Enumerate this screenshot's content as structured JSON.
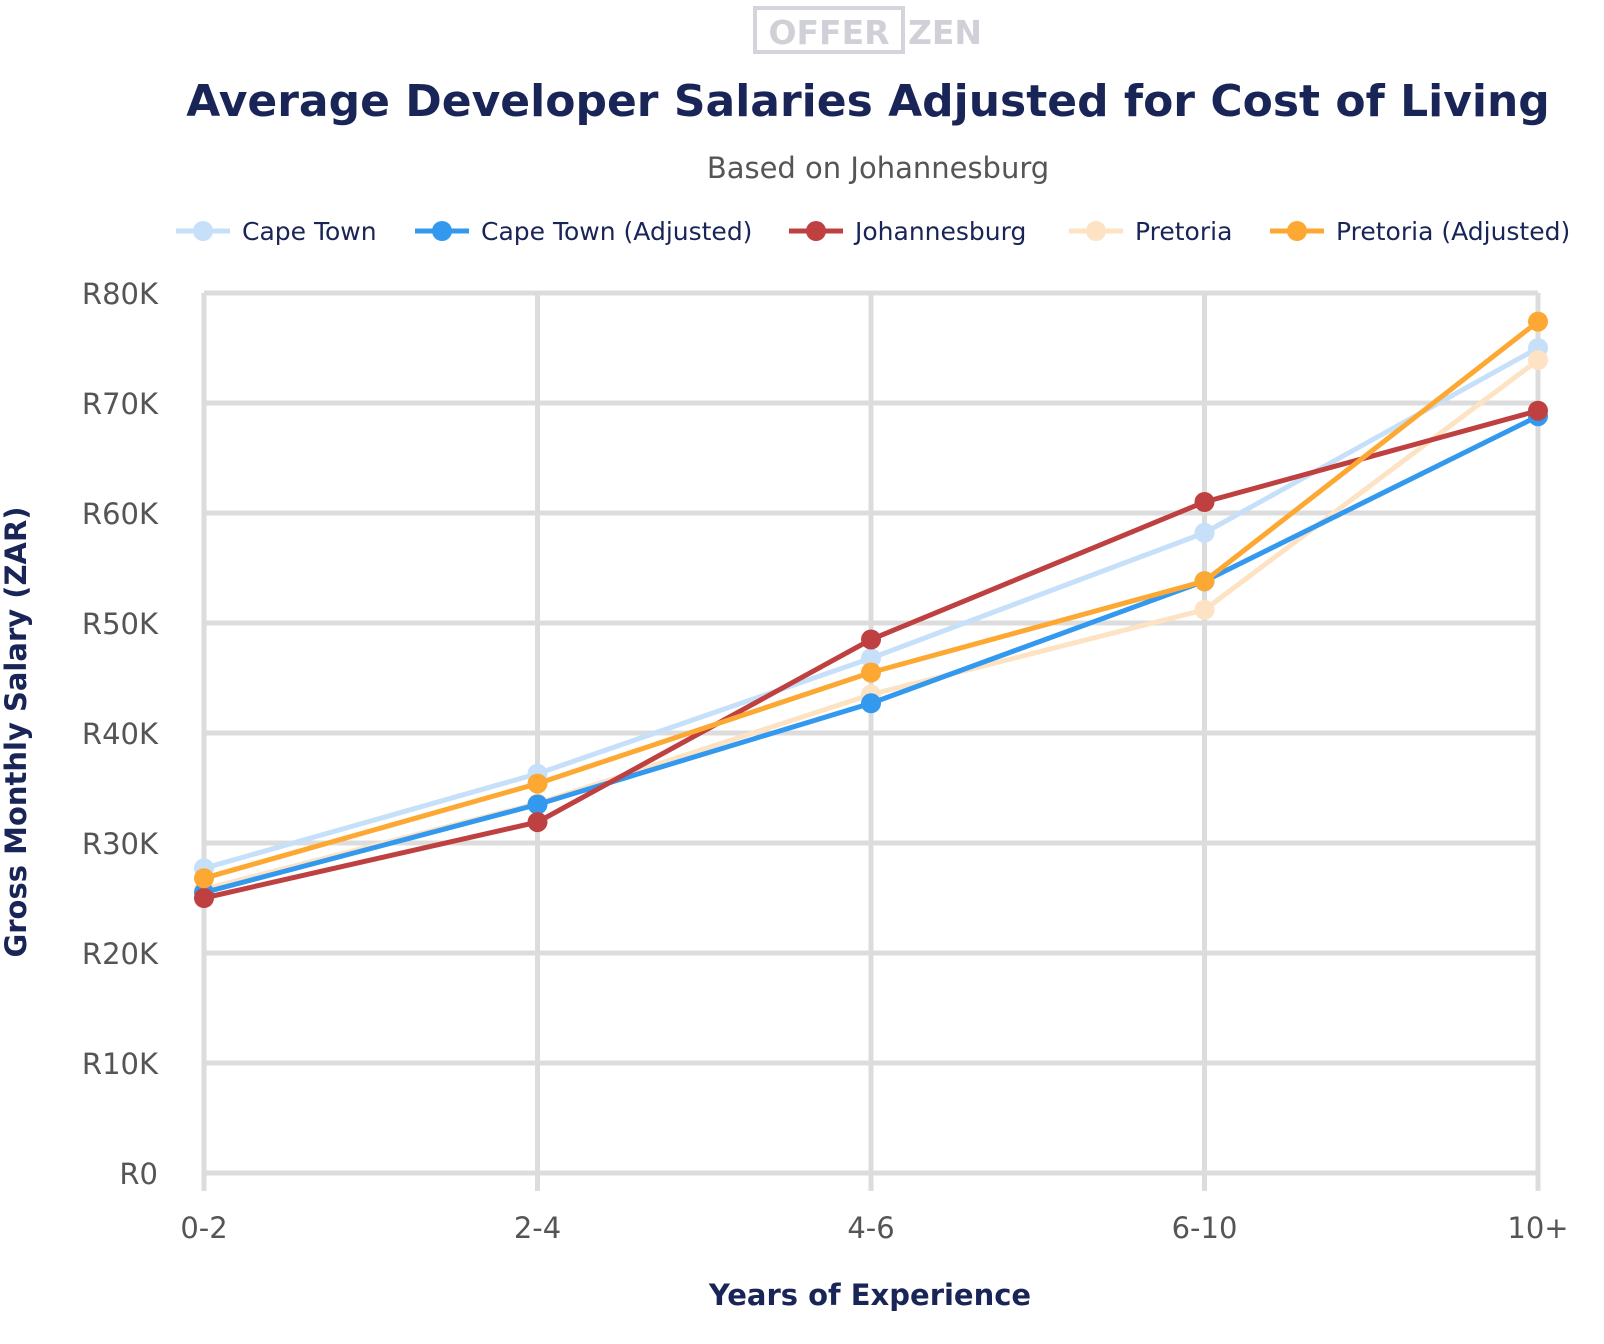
{
  "logo": {
    "text_left": "OFFER",
    "text_right": "ZEN"
  },
  "chart_data": {
    "type": "line",
    "title": "Average Developer Salaries Adjusted for Cost of Living",
    "subtitle": "Based on Johannesburg",
    "xlabel": "Years of Experience",
    "ylabel": "Gross Monthly Salary (ZAR)",
    "categories": [
      "0-2",
      "2-4",
      "4-6",
      "6-10",
      "10+"
    ],
    "ylim": [
      0,
      80000
    ],
    "yticks": [
      0,
      10000,
      20000,
      30000,
      40000,
      50000,
      60000,
      70000,
      80000
    ],
    "ytick_labels": [
      "R0",
      "R10K",
      "R20K",
      "R30K",
      "R40K",
      "R50K",
      "R60K",
      "R70K",
      "R80K"
    ],
    "grid": true,
    "legend": "top",
    "series": [
      {
        "name": "Cape Town",
        "color": "#c6e0fa",
        "values": [
          27700,
          36300,
          46800,
          58200,
          75000
        ]
      },
      {
        "name": "Pretoria",
        "color": "#fde3c4",
        "values": [
          25800,
          33600,
          43500,
          51200,
          73900
        ]
      },
      {
        "name": "Cape Town (Adjusted)",
        "color": "#3399ee",
        "values": [
          25500,
          33500,
          42700,
          53800,
          68800
        ]
      },
      {
        "name": "Johannesburg",
        "color": "#bf4040",
        "values": [
          25000,
          31900,
          48500,
          61000,
          69300
        ]
      },
      {
        "name": "Pretoria (Adjusted)",
        "color": "#fda832",
        "values": [
          26800,
          35400,
          45500,
          53800,
          77400
        ]
      }
    ],
    "legend_order": [
      "Cape Town",
      "Cape Town (Adjusted)",
      "Johannesburg",
      "Pretoria",
      "Pretoria (Adjusted)"
    ]
  }
}
